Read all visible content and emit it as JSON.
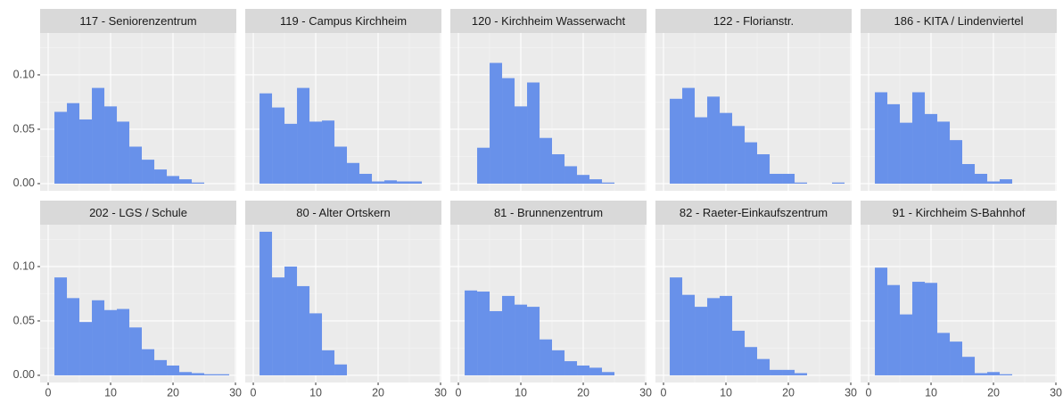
{
  "chart_data": {
    "type": "histogram",
    "color": "#6891ea",
    "grid": true,
    "xlim": [
      -1.29,
      30.14
    ],
    "ylim": [
      -0.0066,
      0.1385
    ],
    "xticks": [
      0,
      10,
      20,
      30
    ],
    "yticks": [
      {
        "value": 0,
        "label": "0.00"
      },
      {
        "value": 0.05,
        "label": "0.05"
      },
      {
        "value": 0.1,
        "label": "0.10"
      }
    ],
    "xminor": [
      5,
      15,
      25
    ],
    "yminor": [
      0.025,
      0.075,
      0.125
    ],
    "facets": [
      {
        "title": "117 - Seniorenzentrum",
        "bins": [
          1,
          3,
          5,
          7,
          9,
          11,
          13,
          15,
          17,
          19,
          21,
          23,
          25
        ],
        "values": [
          0.066,
          0.074,
          0.059,
          0.088,
          0.071,
          0.057,
          0.034,
          0.022,
          0.013,
          0.007,
          0.004,
          0.001
        ]
      },
      {
        "title": "119 - Campus Kirchheim",
        "bins": [
          1,
          3,
          5,
          7,
          9,
          11,
          13,
          15,
          17,
          19,
          21,
          23,
          25,
          27
        ],
        "values": [
          0.083,
          0.07,
          0.055,
          0.088,
          0.057,
          0.058,
          0.034,
          0.019,
          0.009,
          0.002,
          0.003,
          0.002,
          0.002
        ]
      },
      {
        "title": "120 - Kirchheim Wasserwacht",
        "bins": [
          3,
          5,
          7,
          9,
          11,
          13,
          15,
          17,
          19,
          21,
          23,
          25
        ],
        "values": [
          0.033,
          0.111,
          0.097,
          0.071,
          0.093,
          0.042,
          0.027,
          0.016,
          0.008,
          0.004,
          0.001
        ]
      },
      {
        "title": "122 - Florianstr.",
        "bins": [
          1,
          3,
          5,
          7,
          9,
          11,
          13,
          15,
          17,
          19,
          21,
          23,
          25,
          27,
          29
        ],
        "values": [
          0.078,
          0.088,
          0.061,
          0.08,
          0.065,
          0.053,
          0.038,
          0.027,
          0.009,
          0.009,
          0.001,
          0,
          0,
          0.001
        ]
      },
      {
        "title": "186 - KITA / Lindenviertel",
        "bins": [
          1,
          3,
          5,
          7,
          9,
          11,
          13,
          15,
          17,
          19,
          21,
          23
        ],
        "values": [
          0.084,
          0.073,
          0.056,
          0.084,
          0.064,
          0.057,
          0.04,
          0.018,
          0.009,
          0.002,
          0.004
        ]
      },
      {
        "title": "202 - LGS / Schule",
        "bins": [
          1,
          3,
          5,
          7,
          9,
          11,
          13,
          15,
          17,
          19,
          21,
          23,
          25,
          27,
          29
        ],
        "values": [
          0.09,
          0.071,
          0.049,
          0.069,
          0.06,
          0.061,
          0.044,
          0.024,
          0.014,
          0.009,
          0.003,
          0.002,
          0.001,
          0.001
        ]
      },
      {
        "title": "80 - Alter Ortskern",
        "bins": [
          1,
          3,
          5,
          7,
          9,
          11,
          13,
          15
        ],
        "values": [
          0.132,
          0.09,
          0.1,
          0.082,
          0.057,
          0.023,
          0.01
        ]
      },
      {
        "title": "81 - Brunnenzentrum",
        "bins": [
          1,
          3,
          5,
          7,
          9,
          11,
          13,
          15,
          17,
          19,
          21,
          23,
          25
        ],
        "values": [
          0.078,
          0.077,
          0.059,
          0.073,
          0.065,
          0.063,
          0.033,
          0.023,
          0.013,
          0.009,
          0.007,
          0.003
        ]
      },
      {
        "title": "82 - Raeter-Einkaufszentrum",
        "bins": [
          1,
          3,
          5,
          7,
          9,
          11,
          13,
          15,
          17,
          19,
          21,
          23
        ],
        "values": [
          0.09,
          0.074,
          0.063,
          0.071,
          0.073,
          0.041,
          0.026,
          0.015,
          0.005,
          0.005,
          0.002
        ]
      },
      {
        "title": "91 - Kirchheim S-Bahnhof",
        "bins": [
          1,
          3,
          5,
          7,
          9,
          11,
          13,
          15,
          17,
          19,
          21,
          23
        ],
        "values": [
          0.099,
          0.083,
          0.056,
          0.086,
          0.085,
          0.039,
          0.031,
          0.017,
          0.002,
          0.003,
          0.001
        ]
      }
    ]
  }
}
